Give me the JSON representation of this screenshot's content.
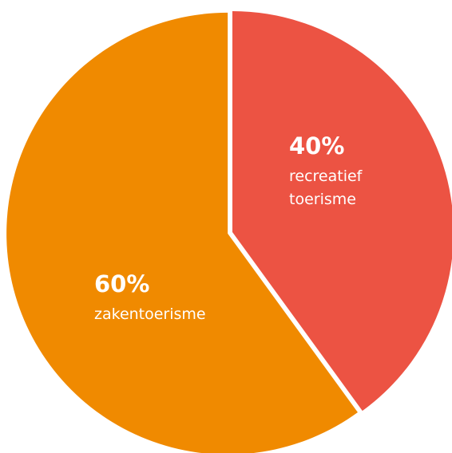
{
  "chart_data": {
    "type": "pie",
    "slices": [
      {
        "percent_label": "40%",
        "label_lines": [
          "recreatief",
          "toerisme"
        ],
        "value": 40,
        "color": "#ec5343"
      },
      {
        "percent_label": "60%",
        "label_lines": [
          "zakentoerisme"
        ],
        "value": 60,
        "color": "#f08a00"
      }
    ],
    "background": "#ffffff"
  }
}
